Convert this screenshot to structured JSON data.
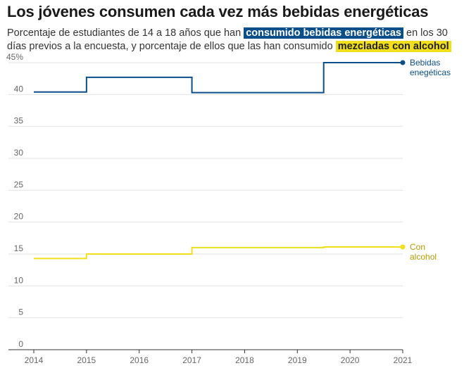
{
  "header": {
    "title": "Los jóvenes consumen cada vez más bebidas energéticas",
    "subtitle_part1": "Porcentaje de estudiantes de 14 a 18 años que han ",
    "subtitle_highlight1": "consumido bebidas energéticas",
    "subtitle_part2": " en los 30 días previos a la encuesta, y porcentaje de ellos que las han consumido ",
    "subtitle_highlight2": "mezcladas con alcohol"
  },
  "colors": {
    "energy": "#0b4f8a",
    "alcohol": "#f2df1c",
    "alcohol_label": "#b59b00",
    "grid": "#e2e2e2",
    "axis": "#333333"
  },
  "chart_data": {
    "type": "line",
    "step": true,
    "x_ticks": [
      "2014",
      "2015",
      "2016",
      "2017",
      "2018",
      "2019",
      "2020",
      "2021"
    ],
    "y_ticks": [
      "45%",
      "40",
      "35",
      "30",
      "25",
      "20",
      "15",
      "10",
      "5",
      "0"
    ],
    "ylim": [
      0,
      45
    ],
    "xlim": [
      2014,
      2021
    ],
    "grid": true,
    "series": [
      {
        "name": "Bebidas energéticas",
        "label_lines": [
          "Bebidas",
          "enegéticas"
        ],
        "color_key": "energy",
        "x": [
          2014,
          2015,
          2017,
          2019.5,
          2021
        ],
        "y": [
          40.4,
          42.7,
          40.3,
          45.0,
          45.0
        ]
      },
      {
        "name": "Con alcohol",
        "label_lines": [
          "Con",
          "alcohol"
        ],
        "color_key": "alcohol",
        "x": [
          2014,
          2015,
          2017,
          2019.5,
          2021
        ],
        "y": [
          14.3,
          15.0,
          16.0,
          16.1,
          16.1
        ]
      }
    ]
  }
}
